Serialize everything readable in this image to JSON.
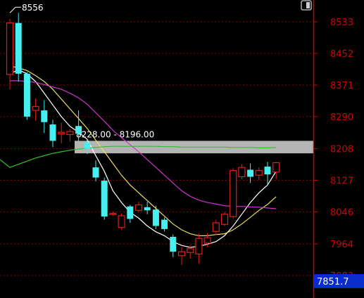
{
  "window": {
    "icons": [
      "diamond-icon",
      "window-restore-icon"
    ]
  },
  "colors": {
    "background": "#000000",
    "axis": "#d40000",
    "grid": "#8c0000",
    "bull": "#e0201a",
    "bear": "#46f0f0",
    "ma_white": "#ffffff",
    "ma_yellow": "#e8e060",
    "ma_magenta": "#cc33cc",
    "ma_green": "#30c030",
    "zone_fill": "#c8c8c8",
    "zone_text": "#ffffff",
    "current_price_bg": "#0a2ccc",
    "current_price_text": "#ffffff"
  },
  "chart_data": {
    "type": "candlestick",
    "y_axis": {
      "position": "right",
      "ticks": [
        "8533",
        "8452",
        "8371",
        "8290",
        "8208",
        "8127",
        "8046",
        "7964",
        "7883"
      ],
      "range": [
        7850,
        8560
      ]
    },
    "high_marker": {
      "label": "8556",
      "value": 8556
    },
    "price_zone": {
      "label": "8228.00 - 8196.00",
      "high": 8228,
      "low": 8196
    },
    "current_price": {
      "label": "7851.7",
      "value": 7851.7
    },
    "candles": [
      {
        "o": 8398,
        "h": 8540,
        "l": 8360,
        "c": 8530
      },
      {
        "o": 8530,
        "h": 8556,
        "l": 8380,
        "c": 8400
      },
      {
        "o": 8400,
        "h": 8404,
        "l": 8282,
        "c": 8290
      },
      {
        "o": 8306,
        "h": 8336,
        "l": 8280,
        "c": 8316
      },
      {
        "o": 8306,
        "h": 8332,
        "l": 8248,
        "c": 8276
      },
      {
        "o": 8270,
        "h": 8282,
        "l": 8212,
        "c": 8228
      },
      {
        "o": 8246,
        "h": 8274,
        "l": 8222,
        "c": 8250
      },
      {
        "o": 8244,
        "h": 8258,
        "l": 8226,
        "c": 8252
      },
      {
        "o": 8266,
        "h": 8306,
        "l": 8226,
        "c": 8246
      },
      {
        "o": 8224,
        "h": 8234,
        "l": 8194,
        "c": 8208
      },
      {
        "o": 8160,
        "h": 8178,
        "l": 8124,
        "c": 8134
      },
      {
        "o": 8126,
        "h": 8134,
        "l": 8026,
        "c": 8034
      },
      {
        "o": 8040,
        "h": 8046,
        "l": 8036,
        "c": 8042
      },
      {
        "o": 8006,
        "h": 8042,
        "l": 8000,
        "c": 8036
      },
      {
        "o": 8060,
        "h": 8064,
        "l": 8018,
        "c": 8028
      },
      {
        "o": 8050,
        "h": 8072,
        "l": 8046,
        "c": 8064
      },
      {
        "o": 8058,
        "h": 8072,
        "l": 8040,
        "c": 8050
      },
      {
        "o": 8052,
        "h": 8062,
        "l": 8002,
        "c": 8010
      },
      {
        "o": 8026,
        "h": 8032,
        "l": 7996,
        "c": 8002
      },
      {
        "o": 7982,
        "h": 7988,
        "l": 7930,
        "c": 7944
      },
      {
        "o": 7934,
        "h": 7956,
        "l": 7910,
        "c": 7944
      },
      {
        "o": 7942,
        "h": 7960,
        "l": 7926,
        "c": 7952
      },
      {
        "o": 7938,
        "h": 7990,
        "l": 7914,
        "c": 7978
      },
      {
        "o": 7966,
        "h": 7992,
        "l": 7956,
        "c": 7980
      },
      {
        "o": 7996,
        "h": 8026,
        "l": 7986,
        "c": 8018
      },
      {
        "o": 8014,
        "h": 8046,
        "l": 8010,
        "c": 8040
      },
      {
        "o": 8034,
        "h": 8158,
        "l": 8028,
        "c": 8152
      },
      {
        "o": 8136,
        "h": 8168,
        "l": 8130,
        "c": 8160
      },
      {
        "o": 8154,
        "h": 8170,
        "l": 8120,
        "c": 8136
      },
      {
        "o": 8140,
        "h": 8160,
        "l": 8128,
        "c": 8152
      },
      {
        "o": 8162,
        "h": 8174,
        "l": 8114,
        "c": 8142
      },
      {
        "o": 8148,
        "h": 8174,
        "l": 8130,
        "c": 8172
      }
    ],
    "moving_averages": [
      {
        "color_key": "ma_white",
        "values": [
          8400,
          8410,
          8400,
          8380,
          8350,
          8320,
          8290,
          8265,
          8250,
          8232,
          8190,
          8150,
          8100,
          8070,
          8045,
          8030,
          8010,
          7995,
          7985,
          7970,
          7960,
          7955,
          7958,
          7963,
          7970,
          7985,
          8010,
          8040,
          8070,
          8095,
          8115,
          8150
        ]
      },
      {
        "color_key": "ma_yellow",
        "values": [
          8420,
          8415,
          8408,
          8395,
          8380,
          8360,
          8335,
          8310,
          8285,
          8260,
          8230,
          8200,
          8170,
          8140,
          8115,
          8095,
          8075,
          8055,
          8035,
          8015,
          8000,
          7990,
          7985,
          7985,
          7988,
          7990,
          8000,
          8015,
          8032,
          8050,
          8065,
          8085
        ]
      },
      {
        "color_key": "ma_magenta",
        "values": [
          8382,
          8382,
          8380,
          8378,
          8372,
          8366,
          8360,
          8350,
          8338,
          8322,
          8300,
          8278,
          8255,
          8236,
          8218,
          8200,
          8180,
          8160,
          8140,
          8120,
          8100,
          8086,
          8076,
          8070,
          8066,
          8062,
          8060,
          8060,
          8059,
          8058,
          8056,
          8054
        ]
      },
      {
        "color_key": "ma_green",
        "values": [
          8160,
          8168,
          8176,
          8184,
          8190,
          8196,
          8200,
          8204,
          8207,
          8209,
          8211,
          8213,
          8214,
          8214,
          8214,
          8214,
          8214,
          8214,
          8213,
          8213,
          8212,
          8212,
          8212,
          8212,
          8212,
          8212,
          8211,
          8211,
          8211,
          8210,
          8210,
          8211
        ]
      }
    ]
  }
}
